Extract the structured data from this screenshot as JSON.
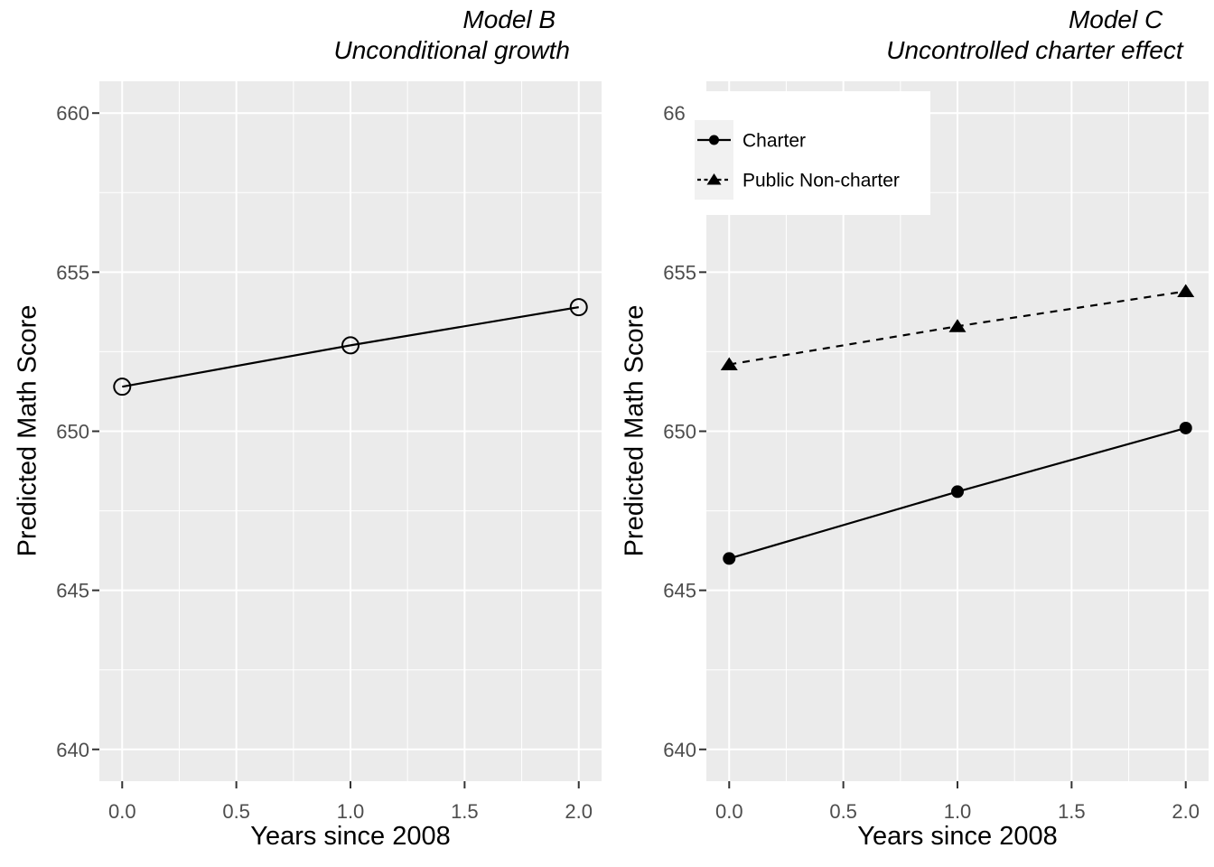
{
  "colors": {
    "background": "#FFFFFF",
    "panel_background": "#EBEBEB",
    "grid": "#FFFFFF",
    "tick_mark": "#333333",
    "tick_label": "#4D4D4D",
    "text": "#000000",
    "series": "#000000",
    "legend_background": "#FFFFFF",
    "legend_key_background": "#F1F1F1"
  },
  "chart_data": [
    {
      "type": "line",
      "title_lines": [
        "Model B",
        "Unconditional growth"
      ],
      "xlabel": "Years since 2008",
      "ylabel": "Predicted Math Score",
      "x": [
        0,
        1,
        2
      ],
      "series": [
        {
          "name": "Unconditional growth",
          "values": [
            651.4,
            652.7,
            653.9
          ],
          "linetype": "solid",
          "marker": "open-circle"
        }
      ],
      "xlim": [
        -0.1,
        2.1
      ],
      "ylim": [
        639,
        661
      ],
      "xticks": [
        0.0,
        0.5,
        1.0,
        1.5,
        2.0
      ],
      "xticklabels": [
        "0.0",
        "0.5",
        "1.0",
        "1.5",
        "2.0"
      ],
      "yticks": [
        640,
        645,
        650,
        655,
        660
      ],
      "yticklabels": [
        "640",
        "645",
        "650",
        "655",
        "660"
      ],
      "xminor": [
        0.25,
        0.75,
        1.25,
        1.75
      ],
      "yminor": [
        642.5,
        647.5,
        652.5,
        657.5
      ],
      "grid": true,
      "legend": null
    },
    {
      "type": "line",
      "title_lines": [
        "Model C",
        "Uncontrolled charter effect"
      ],
      "xlabel": "Years since 2008",
      "ylabel": "Predicted Math Score",
      "x": [
        0,
        1,
        2
      ],
      "series": [
        {
          "name": "Charter",
          "values": [
            646.0,
            648.1,
            650.1
          ],
          "linetype": "solid",
          "marker": "filled-circle"
        },
        {
          "name": "Public Non-charter",
          "values": [
            652.1,
            653.3,
            654.4
          ],
          "linetype": "dashed",
          "marker": "filled-triangle"
        }
      ],
      "xlim": [
        -0.1,
        2.1
      ],
      "ylim": [
        639,
        661
      ],
      "xticks": [
        0.0,
        0.5,
        1.0,
        1.5,
        2.0
      ],
      "xticklabels": [
        "0.0",
        "0.5",
        "1.0",
        "1.5",
        "2.0"
      ],
      "yticks": [
        640,
        645,
        650,
        655,
        660
      ],
      "yticklabels": [
        "640",
        "645",
        "650",
        "655",
        "660"
      ],
      "xminor": [
        0.25,
        0.75,
        1.25,
        1.75
      ],
      "yminor": [
        642.5,
        647.5,
        652.5,
        657.5
      ],
      "grid": true,
      "legend": {
        "position": "top-left",
        "items": [
          "Charter",
          "Public Non-charter"
        ]
      }
    }
  ]
}
